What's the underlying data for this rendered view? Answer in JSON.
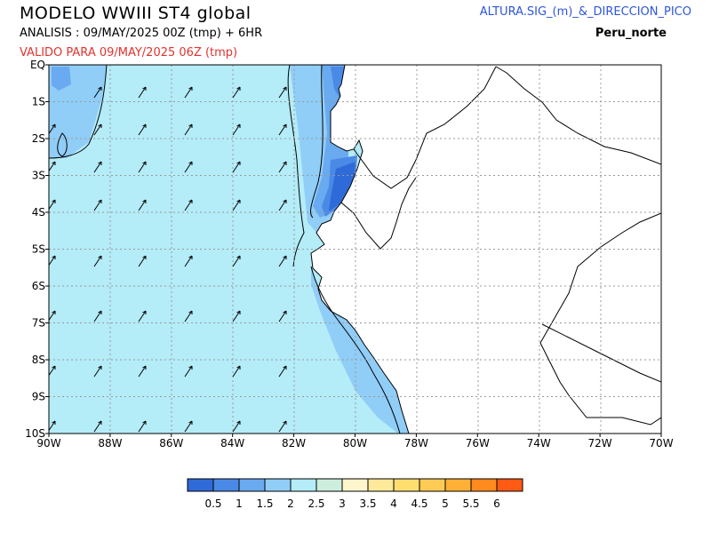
{
  "header": {
    "title": "MODELO  WWIII  ST4  global",
    "analysis": "ANALISIS : 09/MAY/2025 00Z   (tmp) + 6HR",
    "valid": "VALIDO PARA  09/MAY/2025 06Z  (tmp)",
    "variable": "ALTURA.SIG_(m)_&_DIRECCION_PICO",
    "region": "Peru_norte"
  },
  "map": {
    "lon_labels": [
      "90W",
      "88W",
      "86W",
      "84W",
      "82W",
      "80W",
      "78W",
      "76W",
      "74W",
      "72W",
      "70W"
    ],
    "lat_labels": [
      "EQ",
      "1S",
      "2S",
      "3S",
      "4S",
      "5S",
      "6S",
      "7S",
      "8S",
      "9S",
      "10S"
    ],
    "colors": {
      "ocean": "#b4ecf8",
      "land": "#ffffff",
      "grid": "#9a9a9a",
      "border": "#000000"
    }
  },
  "colorbar": {
    "colors": [
      "#2f6bd8",
      "#4a89e6",
      "#6aaaf0",
      "#90cdf7",
      "#b4ecf8",
      "#cdeedd",
      "#fff5cc",
      "#ffe99a",
      "#ffde70",
      "#ffcb55",
      "#ffb035",
      "#ff8a1e",
      "#ff5a14"
    ],
    "labels": [
      "0.5",
      "1",
      "1.5",
      "2",
      "2.5",
      "3",
      "3.5",
      "4",
      "4.5",
      "5",
      "5.5",
      "6"
    ]
  }
}
